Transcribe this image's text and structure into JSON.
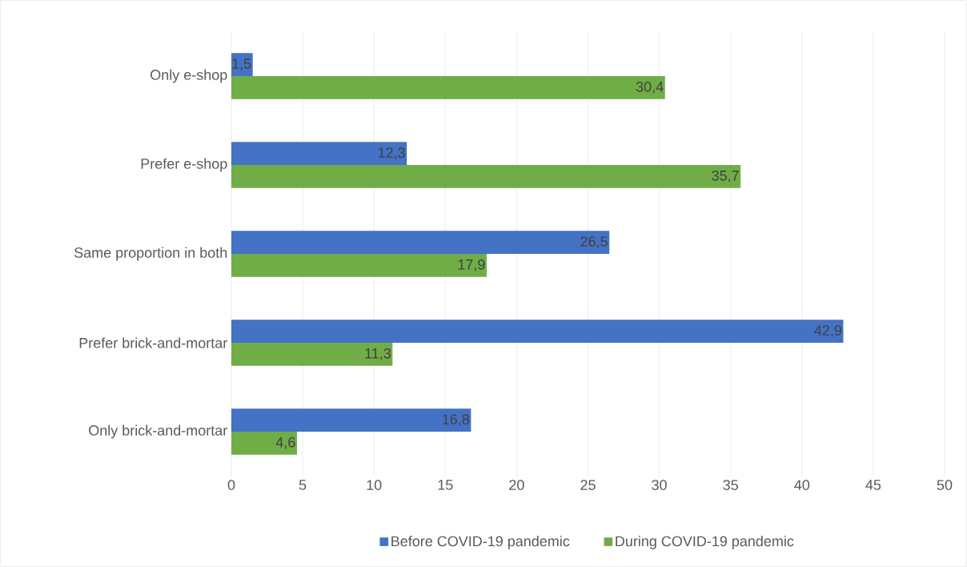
{
  "chart_data": {
    "type": "bar",
    "orientation": "horizontal",
    "categories": [
      "Only e-shop",
      "Prefer e-shop",
      "Same proportion in both",
      "Prefer brick-and-mortar",
      "Only brick-and-mortar"
    ],
    "series": [
      {
        "name": "Before COVID-19 pandemic",
        "color": "#4472c4",
        "values": [
          1.5,
          12.3,
          26.5,
          42.9,
          16.8
        ],
        "value_labels": [
          "1,5",
          "12,3",
          "26,5",
          "42,9",
          "16,8"
        ]
      },
      {
        "name": "During COVID-19 pandemic",
        "color": "#70ad47",
        "values": [
          30.4,
          35.7,
          17.9,
          11.3,
          4.6
        ],
        "value_labels": [
          "30,4",
          "35,7",
          "17,9",
          "11,3",
          "4,6"
        ]
      }
    ],
    "xlim": [
      0,
      50
    ],
    "xticks": [
      0,
      5,
      10,
      15,
      20,
      25,
      30,
      35,
      40,
      45,
      50
    ],
    "grid": "x",
    "legend": "bottom"
  }
}
